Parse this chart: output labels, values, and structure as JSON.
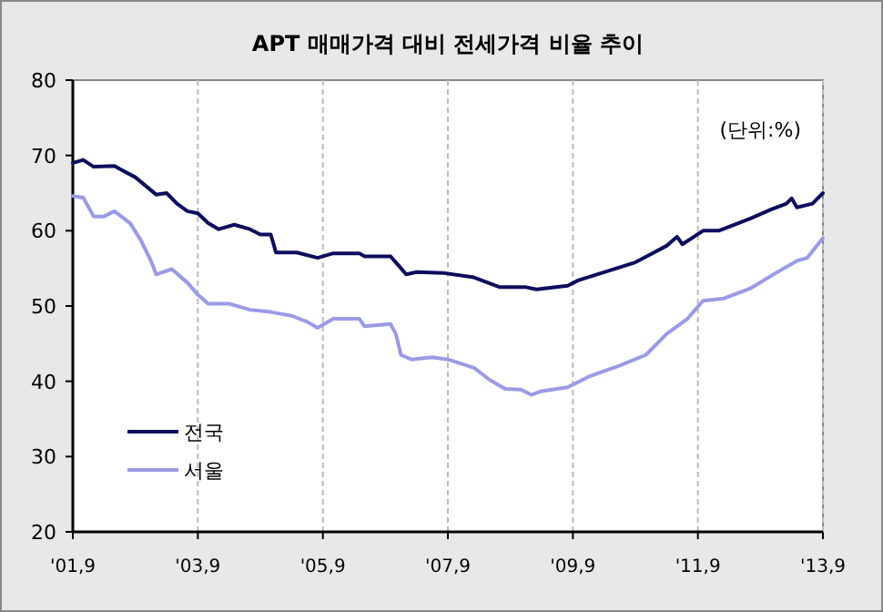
{
  "chart_data": {
    "type": "line",
    "title": "APT 매매가격 대비 전세가격 비율 추이",
    "annotations": [
      "(단위:%)"
    ],
    "xlim": [
      "2001-09",
      "2013-09"
    ],
    "xticks": [
      {
        "value": "2001-09",
        "label": "'01,9"
      },
      {
        "value": "2003-09",
        "label": "'03,9"
      },
      {
        "value": "2005-09",
        "label": "'05,9"
      },
      {
        "value": "2007-09",
        "label": "'07,9"
      },
      {
        "value": "2009-09",
        "label": "'09,9"
      },
      {
        "value": "2011-09",
        "label": "'11,9"
      },
      {
        "value": "2013-09",
        "label": "'13,9"
      }
    ],
    "ylim": [
      20,
      80
    ],
    "yticks": [
      20,
      30,
      40,
      50,
      60,
      70,
      80
    ],
    "grid": "x",
    "legend": "bottom left",
    "marker": "none",
    "line_style": "solid",
    "series": [
      {
        "name": "전국",
        "color": "#0d0d5e",
        "x": [
          "2001-09",
          "2001-11",
          "2002-01",
          "2002-05",
          "2002-06",
          "2002-09",
          "2003-01",
          "2003-03",
          "2003-05",
          "2003-07",
          "2003-09",
          "2003-11",
          "2004-01",
          "2004-04",
          "2004-07",
          "2004-09",
          "2004-11",
          "2004-12",
          "2005-04",
          "2005-08",
          "2005-11",
          "2006-04",
          "2006-05",
          "2006-10",
          "2006-12",
          "2007-01",
          "2007-03",
          "2007-08",
          "2008-02",
          "2008-07",
          "2008-12",
          "2009-02",
          "2009-08",
          "2009-10",
          "2010-03",
          "2010-09",
          "2010-12",
          "2011-03",
          "2011-05",
          "2011-06",
          "2011-10",
          "2012-01",
          "2012-07",
          "2012-11",
          "2013-02",
          "2013-03",
          "2013-04",
          "2013-07",
          "2013-09"
        ],
        "values": [
          69.0,
          69.4,
          68.5,
          68.6,
          68.2,
          67.1,
          64.8,
          65.0,
          63.6,
          62.6,
          62.3,
          61.0,
          60.2,
          60.8,
          60.2,
          59.5,
          59.5,
          57.1,
          57.1,
          56.4,
          57.0,
          57.0,
          56.6,
          56.6,
          55.0,
          54.2,
          54.5,
          54.4,
          53.8,
          52.5,
          52.5,
          52.2,
          52.7,
          53.4,
          54.5,
          55.8,
          56.9,
          58.0,
          59.2,
          58.2,
          60.0,
          60.0,
          61.6,
          62.8,
          63.6,
          64.3,
          63.1,
          63.6,
          65.0
        ]
      },
      {
        "name": "서울",
        "color": "#9a9ae6",
        "x": [
          "2001-09",
          "2001-11",
          "2002-01",
          "2002-03",
          "2002-05",
          "2002-08",
          "2002-10",
          "2002-12",
          "2003-01",
          "2003-04",
          "2003-07",
          "2003-09",
          "2003-11",
          "2004-03",
          "2004-07",
          "2004-11",
          "2005-03",
          "2005-06",
          "2005-08",
          "2005-11",
          "2006-04",
          "2006-05",
          "2006-10",
          "2006-11",
          "2006-12",
          "2007-02",
          "2007-06",
          "2007-09",
          "2008-02",
          "2008-05",
          "2008-08",
          "2008-11",
          "2009-01",
          "2009-03",
          "2009-08",
          "2009-12",
          "2010-06",
          "2010-11",
          "2011-03",
          "2011-07",
          "2011-10",
          "2012-02",
          "2012-07",
          "2012-12",
          "2013-04",
          "2013-06",
          "2013-09"
        ],
        "values": [
          64.6,
          64.4,
          61.9,
          61.9,
          62.6,
          61.0,
          58.8,
          56.0,
          54.2,
          54.9,
          53.1,
          51.5,
          50.3,
          50.3,
          49.5,
          49.2,
          48.7,
          47.9,
          47.1,
          48.3,
          48.3,
          47.3,
          47.6,
          46.3,
          43.5,
          42.9,
          43.2,
          42.9,
          41.8,
          40.2,
          39.0,
          38.9,
          38.2,
          38.7,
          39.2,
          40.6,
          42.1,
          43.5,
          46.3,
          48.3,
          50.7,
          51.0,
          52.3,
          54.4,
          56.0,
          56.4,
          59.0
        ]
      }
    ]
  }
}
